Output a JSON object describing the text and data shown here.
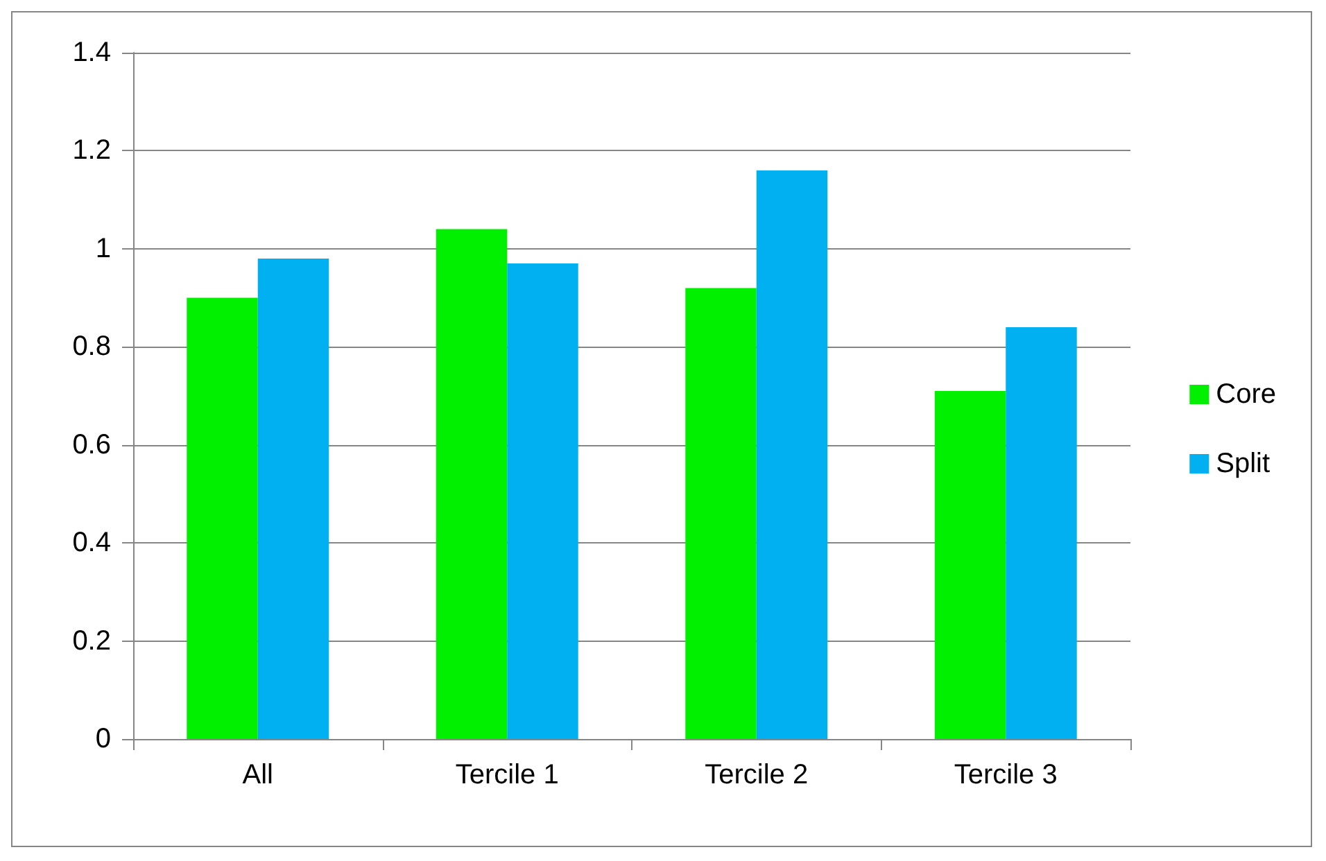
{
  "chart_data": {
    "type": "bar",
    "categories": [
      "All",
      "Tercile 1",
      "Tercile 2",
      "Tercile 3"
    ],
    "series": [
      {
        "name": "Core",
        "color": "#00f000",
        "values": [
          0.9,
          1.04,
          0.92,
          0.71
        ]
      },
      {
        "name": "Split",
        "color": "#00b0f0",
        "values": [
          0.98,
          0.97,
          1.16,
          0.84
        ]
      }
    ],
    "ylim": [
      0,
      1.4
    ],
    "yticks": [
      0,
      0.2,
      0.4,
      0.6,
      0.8,
      1,
      1.2,
      1.4
    ],
    "grid": "y",
    "legend": "right"
  }
}
